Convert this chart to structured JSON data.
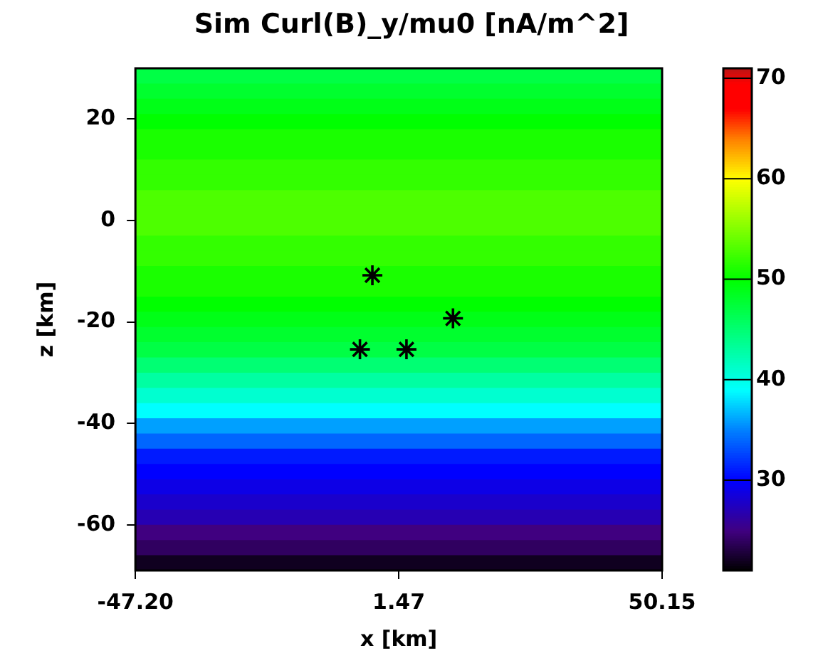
{
  "chart_data": {
    "type": "heatmap",
    "title": "Sim Curl(B)_y/mu0 [nA/m^2]",
    "xlabel": "x [km]",
    "ylabel": "z [km]",
    "xlim": [
      -47.2,
      50.15
    ],
    "xticks": [
      {
        "value": -47.2,
        "label": "-47.20"
      },
      1.47,
      50.15
    ],
    "ylim": [
      -69,
      30
    ],
    "yticks": [
      -60,
      -40,
      -20,
      0,
      20
    ],
    "cells": [
      [
        47
      ],
      [
        48
      ],
      [
        49
      ],
      [
        50
      ],
      [
        51
      ],
      [
        51
      ],
      [
        52
      ],
      [
        52
      ],
      [
        53
      ],
      [
        53
      ],
      [
        53
      ],
      [
        52
      ],
      [
        52
      ],
      [
        51
      ],
      [
        51
      ],
      [
        50
      ],
      [
        49
      ],
      [
        48
      ],
      [
        47
      ],
      [
        45
      ],
      [
        43
      ],
      [
        41
      ],
      [
        39
      ],
      [
        36
      ],
      [
        34
      ],
      [
        31
      ],
      [
        30
      ],
      [
        29
      ],
      [
        28
      ],
      [
        27
      ],
      [
        25
      ],
      [
        24
      ],
      [
        22
      ]
    ],
    "clim": [
      21,
      71
    ],
    "cticks": [
      30,
      40,
      50,
      60,
      70
    ],
    "grid": false,
    "legend": false,
    "series": [
      {
        "type": "scatter",
        "color": "#000000",
        "marker": "cross",
        "x": [
          -3.4,
          -5.7,
          2.9,
          11.5
        ],
        "values": [
          -10.8,
          -25.4,
          -25.4,
          -19.3
        ]
      }
    ]
  }
}
